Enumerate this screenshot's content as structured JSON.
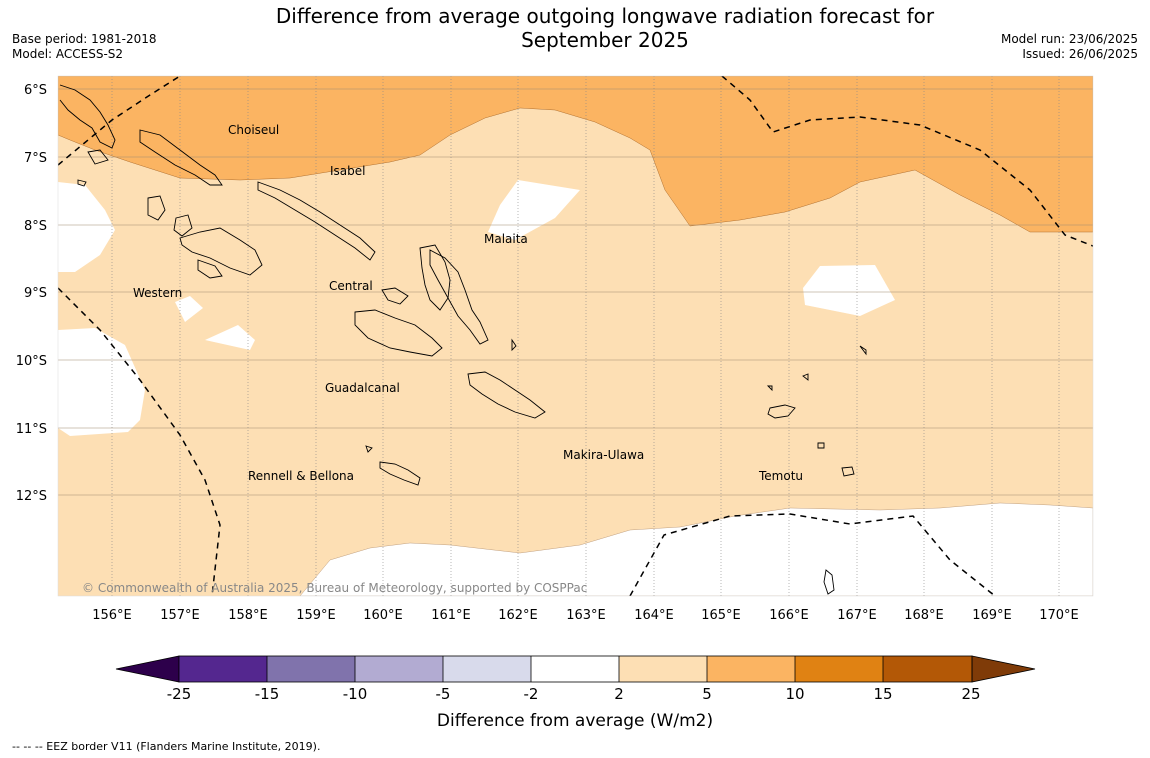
{
  "title": "Difference from average outgoing longwave radiation forecast for September 2025",
  "meta": {
    "base_period": "Base period: 1981-2018",
    "model": "Model: ACCESS-S2",
    "model_run": "Model run: 23/06/2025",
    "issued": "Issued: 26/06/2025"
  },
  "map": {
    "lon_ticks": [
      "156°E",
      "157°E",
      "158°E",
      "159°E",
      "160°E",
      "161°E",
      "162°E",
      "163°E",
      "164°E",
      "165°E",
      "166°E",
      "167°E",
      "168°E",
      "169°E",
      "170°E"
    ],
    "lat_ticks": [
      "6°S",
      "7°S",
      "8°S",
      "9°S",
      "10°S",
      "11°S",
      "12°S"
    ],
    "region_labels": [
      {
        "name": "Choiseul",
        "lon": 157.8,
        "lat": -6.6
      },
      {
        "name": "Isabel",
        "lon": 159.1,
        "lat": -7.2
      },
      {
        "name": "Malaita",
        "lon": 161.5,
        "lat": -8.2
      },
      {
        "name": "Western",
        "lon": 156.3,
        "lat": -9.0
      },
      {
        "name": "Central",
        "lon": 159.2,
        "lat": -8.9
      },
      {
        "name": "Guadalcanal",
        "lon": 159.1,
        "lat": -10.4
      },
      {
        "name": "Makira-Ulawa",
        "lon": 162.7,
        "lat": -11.4
      },
      {
        "name": "Rennell & Bellona",
        "lon": 158.0,
        "lat": -11.7
      },
      {
        "name": "Temotu",
        "lon": 165.6,
        "lat": -11.7
      }
    ],
    "copyright": "© Commonwealth of Australia 2025, Bureau of Meteorology, supported by COSPPac",
    "colors": {
      "band_5_10": "#fbb462",
      "band_2_5": "#fddfb4",
      "band_-2_2": "#ffffff"
    }
  },
  "legend": {
    "boundaries": [
      "-25",
      "-15",
      "-10",
      "-5",
      "-2",
      "2",
      "5",
      "10",
      "15",
      "25"
    ],
    "colors": [
      "#54278f",
      "#8073ac",
      "#b2abd2",
      "#d8daeb",
      "#ffffff",
      "#fddfb4",
      "#fbb462",
      "#e08213",
      "#b35806"
    ],
    "under_color": "#2d004b",
    "over_color": "#7f3b08",
    "label": "Difference from average (W/m2)"
  },
  "footnote": "--  --  -- EEZ border V11 (Flanders Marine Institute, 2019)."
}
